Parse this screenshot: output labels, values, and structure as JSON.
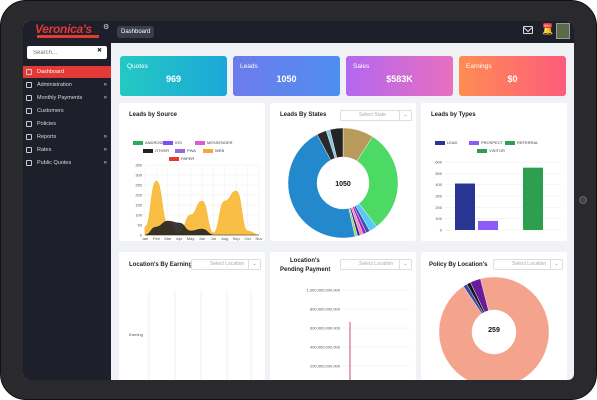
{
  "brand": {
    "name": "Veronica's",
    "subtitle": "INSURANCE SOLUTIONS",
    "color": "#e53935"
  },
  "header": {
    "breadcrumb": "Dashboard",
    "notification_count": "99+"
  },
  "search": {
    "placeholder": "Search..."
  },
  "sidebar": {
    "items": [
      {
        "label": "Dashboard",
        "active": true,
        "icon": "dashboard-icon"
      },
      {
        "label": "Administration",
        "chevron": "»",
        "icon": "admin-icon"
      },
      {
        "label": "Monthly Payments",
        "chevron": "»",
        "icon": "payments-icon"
      },
      {
        "label": "Customers",
        "icon": "customers-icon"
      },
      {
        "label": "Policies",
        "icon": "policies-icon"
      },
      {
        "label": "Reports",
        "chevron": "»",
        "icon": "reports-icon"
      },
      {
        "label": "Rates",
        "chevron": "»",
        "icon": "rates-icon"
      },
      {
        "label": "Public Quotes",
        "chevron": "»",
        "icon": "quotes-icon"
      }
    ]
  },
  "stats": [
    {
      "label": "Quotes",
      "value": "969",
      "gradient": [
        "#23c9c3",
        "#1ba7d8"
      ]
    },
    {
      "label": "Leads",
      "value": "1050",
      "gradient": [
        "#6d7bea",
        "#4f8ef0"
      ]
    },
    {
      "label": "Sales",
      "value": "$583K",
      "gradient": [
        "#b467f0",
        "#e76fbf"
      ]
    },
    {
      "label": "Earnings",
      "value": "$0",
      "gradient": [
        "#fe8c52",
        "#fd5c7d"
      ]
    }
  ],
  "panels": {
    "source": {
      "title": "Leads by Source"
    },
    "states": {
      "title": "Leads By States",
      "select": "Select State",
      "center": "1050"
    },
    "types": {
      "title": "Leads by Types"
    },
    "earning": {
      "title": "Location's By Earning",
      "select": "Select Location",
      "ylabel": "Earning"
    },
    "pending": {
      "title1": "Location's",
      "title2": "Pending Payment",
      "select": "Select Location"
    },
    "policy": {
      "title": "Policy By Location's",
      "select": "Select Location",
      "center": "259"
    }
  },
  "chart_data": [
    {
      "type": "area",
      "title": "Leads by Source",
      "categories": [
        "Jan",
        "Feb",
        "Mar",
        "Apr",
        "May",
        "Jun",
        "Jul",
        "Aug",
        "Sep",
        "Oct",
        "Nov"
      ],
      "ylim": [
        0,
        350
      ],
      "yticks": [
        0,
        50,
        100,
        150,
        200,
        250,
        300,
        350
      ],
      "legend": [
        {
          "name": "ANDROID",
          "color": "#2eaa5a"
        },
        {
          "name": "IOS",
          "color": "#7c4dff"
        },
        {
          "name": "MESSENGER",
          "color": "#e05ad0"
        },
        {
          "name": "OTHER",
          "color": "#222222"
        },
        {
          "name": "PWA",
          "color": "#8e6dd8"
        },
        {
          "name": "WEB",
          "color": "#f7a63b"
        },
        {
          "name": "PAPER",
          "color": "#e53935"
        }
      ],
      "series": [
        {
          "name": "WEB",
          "color": "#f7b731",
          "values": [
            40,
            270,
            60,
            10,
            100,
            170,
            10,
            170,
            220,
            20,
            0
          ]
        },
        {
          "name": "OTHER",
          "color": "#222222",
          "values": [
            0,
            40,
            70,
            60,
            20,
            30,
            0,
            0,
            0,
            0,
            0
          ]
        }
      ]
    },
    {
      "type": "pie",
      "title": "Leads By States",
      "donut": true,
      "total": 1050,
      "slices": [
        {
          "value": 95,
          "color": "#b89a5a"
        },
        {
          "value": 320,
          "color": "#4cd964"
        },
        {
          "value": 25,
          "color": "#5ac8fa"
        },
        {
          "value": 12,
          "color": "#3f51b5"
        },
        {
          "value": 10,
          "color": "#9c27b0"
        },
        {
          "value": 10,
          "color": "#ff7fbf"
        },
        {
          "value": 8,
          "color": "#1d2b8c"
        },
        {
          "value": 8,
          "color": "#a8d16a"
        },
        {
          "value": 480,
          "color": "#2389cc"
        },
        {
          "value": 30,
          "color": "#2a2a2a"
        },
        {
          "value": 12,
          "color": "#7ec8e3"
        },
        {
          "value": 40,
          "color": "#232323"
        }
      ]
    },
    {
      "type": "bar",
      "title": "Leads by Types",
      "ylim": [
        0,
        600
      ],
      "yticks": [
        0,
        100,
        200,
        300,
        400,
        500,
        600
      ],
      "series": [
        {
          "name": "LEAD",
          "color": "#283593",
          "value": 410
        },
        {
          "name": "PROSPECT",
          "color": "#8b5cf6",
          "value": 80
        },
        {
          "name": "REFERRAL",
          "color": "#2e9e4f",
          "value": 550
        },
        {
          "name": "VISITOR",
          "color": "#2e9e4f",
          "value": 0
        }
      ]
    },
    {
      "type": "bar",
      "title": "Location's By Earning",
      "ylabel": "Earning",
      "values": []
    },
    {
      "type": "bar",
      "title": "Location's Pending Payment",
      "ylim": [
        0,
        1000000000
      ],
      "yticks": [
        "1,000,000,000.000",
        "800,000,000.000",
        "600,000,000.000",
        "400,000,000.000",
        "200,000,000.000"
      ]
    },
    {
      "type": "pie",
      "title": "Policy By Location's",
      "donut": true,
      "total": 259,
      "slices": [
        {
          "value": 245,
          "color": "#f4a48c"
        },
        {
          "value": 3,
          "color": "#3949ab"
        },
        {
          "value": 3,
          "color": "#1a1a1a"
        },
        {
          "value": 8,
          "color": "#6a1b9a"
        }
      ]
    }
  ]
}
